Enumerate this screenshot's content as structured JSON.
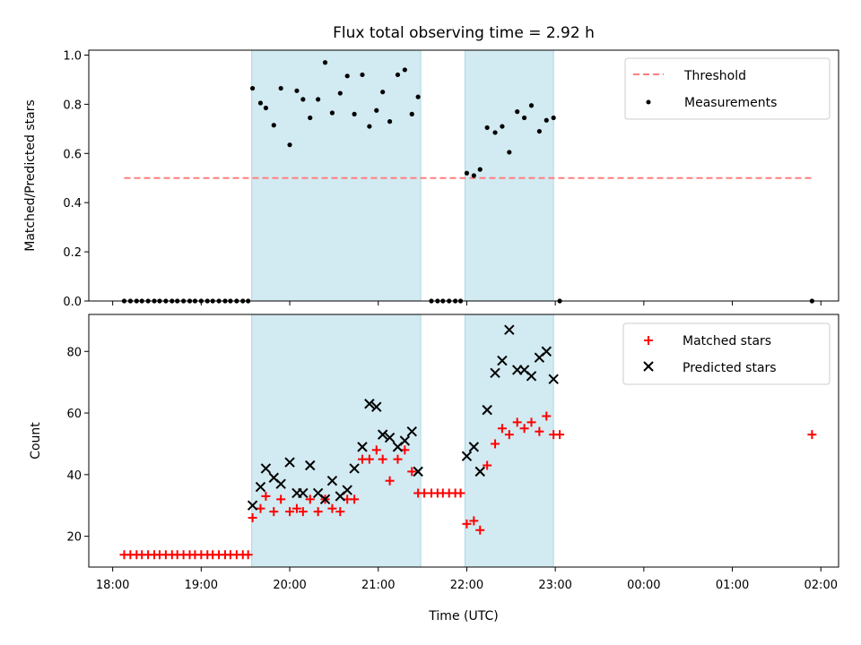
{
  "chart_data": {
    "type": "scatter",
    "title": "Flux total observing time = 2.92 h",
    "xlabel": "Time (UTC)",
    "x_ticks": [
      "18:00",
      "19:00",
      "20:00",
      "21:00",
      "22:00",
      "23:00",
      "00:00",
      "01:00",
      "02:00"
    ],
    "x_tick_hours": [
      18,
      19,
      20,
      21,
      22,
      23,
      24,
      25,
      26
    ],
    "xlim_hours": [
      17.73,
      26.2
    ],
    "shaded_regions_hours": [
      [
        19.57,
        21.48
      ],
      [
        21.98,
        22.98
      ]
    ],
    "shade_color": "#add8e6",
    "panels": [
      {
        "ylabel": "Matched/Predicted stars",
        "ylim": [
          0,
          1.02
        ],
        "y_ticks": [
          0.0,
          0.2,
          0.4,
          0.6,
          0.8,
          1.0
        ],
        "y_tick_labels": [
          "0.0",
          "0.2",
          "0.4",
          "0.6",
          "0.8",
          "1.0"
        ],
        "legend_position": "upper right",
        "threshold": {
          "name": "Threshold",
          "value": 0.5,
          "x_range_hours": [
            18.13,
            25.9
          ],
          "color": "#ff7f7f"
        },
        "series": [
          {
            "name": "Measurements",
            "marker": "dot",
            "color": "#000000",
            "x_hours": [
              18.13,
              18.2,
              18.27,
              18.33,
              18.4,
              18.47,
              18.53,
              18.6,
              18.67,
              18.73,
              18.8,
              18.87,
              18.93,
              19.0,
              19.07,
              19.13,
              19.2,
              19.27,
              19.33,
              19.4,
              19.47,
              19.53,
              19.58,
              19.67,
              19.73,
              19.82,
              19.9,
              20.0,
              20.08,
              20.15,
              20.23,
              20.32,
              20.4,
              20.48,
              20.57,
              20.65,
              20.73,
              20.82,
              20.9,
              20.98,
              21.05,
              21.13,
              21.22,
              21.3,
              21.38,
              21.45,
              21.6,
              21.67,
              21.73,
              21.8,
              21.87,
              21.93,
              22.0,
              22.08,
              22.15,
              22.23,
              22.32,
              22.4,
              22.48,
              22.57,
              22.65,
              22.73,
              22.82,
              22.9,
              22.98,
              23.05,
              25.9
            ],
            "y": [
              0,
              0,
              0,
              0,
              0,
              0,
              0,
              0,
              0,
              0,
              0,
              0,
              0,
              0,
              0,
              0,
              0,
              0,
              0,
              0,
              0,
              0,
              0.865,
              0.805,
              0.785,
              0.715,
              0.865,
              0.635,
              0.855,
              0.82,
              0.745,
              0.82,
              0.97,
              0.765,
              0.845,
              0.915,
              0.76,
              0.92,
              0.71,
              0.775,
              0.85,
              0.73,
              0.92,
              0.94,
              0.76,
              0.83,
              0,
              0,
              0,
              0,
              0,
              0,
              0.52,
              0.51,
              0.535,
              0.705,
              0.685,
              0.71,
              0.605,
              0.77,
              0.745,
              0.795,
              0.69,
              0.735,
              0.745,
              0,
              0
            ]
          }
        ]
      },
      {
        "ylabel": "Count",
        "ylim": [
          10,
          92
        ],
        "y_ticks": [
          20,
          40,
          60,
          80
        ],
        "y_tick_labels": [
          "20",
          "40",
          "60",
          "80"
        ],
        "legend_position": "upper right",
        "series": [
          {
            "name": "Matched stars",
            "marker": "plus",
            "color": "#ff0000",
            "x_hours": [
              18.13,
              18.2,
              18.27,
              18.33,
              18.4,
              18.47,
              18.53,
              18.6,
              18.67,
              18.73,
              18.8,
              18.87,
              18.93,
              19.0,
              19.07,
              19.13,
              19.2,
              19.27,
              19.33,
              19.4,
              19.47,
              19.53,
              19.58,
              19.67,
              19.73,
              19.82,
              19.9,
              20.0,
              20.08,
              20.15,
              20.23,
              20.32,
              20.4,
              20.48,
              20.57,
              20.65,
              20.73,
              20.82,
              20.9,
              20.98,
              21.05,
              21.13,
              21.22,
              21.3,
              21.38,
              21.45,
              21.52,
              21.6,
              21.67,
              21.73,
              21.8,
              21.87,
              21.93,
              22.0,
              22.08,
              22.15,
              22.23,
              22.32,
              22.4,
              22.48,
              22.57,
              22.65,
              22.73,
              22.82,
              22.9,
              22.98,
              23.05,
              25.9
            ],
            "y": [
              14,
              14,
              14,
              14,
              14,
              14,
              14,
              14,
              14,
              14,
              14,
              14,
              14,
              14,
              14,
              14,
              14,
              14,
              14,
              14,
              14,
              14,
              26,
              29,
              33,
              28,
              32,
              28,
              29,
              28,
              32,
              28,
              32,
              29,
              28,
              32,
              32,
              45,
              45,
              48,
              45,
              38,
              45,
              48,
              41,
              34,
              34,
              34,
              34,
              34,
              34,
              34,
              34,
              24,
              25,
              22,
              43,
              50,
              55,
              53,
              57,
              55,
              57,
              54,
              59,
              53,
              53,
              53
            ]
          },
          {
            "name": "Predicted stars",
            "marker": "x",
            "color": "#000000",
            "x_hours": [
              19.58,
              19.67,
              19.73,
              19.82,
              19.9,
              20.0,
              20.08,
              20.15,
              20.23,
              20.32,
              20.4,
              20.48,
              20.57,
              20.65,
              20.73,
              20.82,
              20.9,
              20.98,
              21.05,
              21.13,
              21.22,
              21.3,
              21.38,
              21.45,
              22.0,
              22.08,
              22.15,
              22.23,
              22.32,
              22.4,
              22.48,
              22.57,
              22.65,
              22.73,
              22.82,
              22.9,
              22.98
            ],
            "y": [
              30,
              36,
              42,
              39,
              37,
              44,
              34,
              34,
              43,
              34,
              32,
              38,
              33,
              35,
              42,
              49,
              63,
              62,
              53,
              52,
              49,
              51,
              54,
              41,
              46,
              49,
              41,
              61,
              73,
              77,
              87,
              74,
              74,
              72,
              78,
              80,
              71
            ]
          }
        ]
      }
    ]
  }
}
